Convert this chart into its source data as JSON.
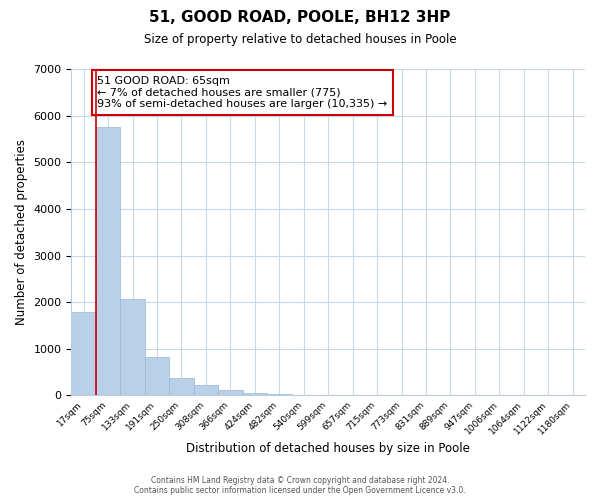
{
  "title": "51, GOOD ROAD, POOLE, BH12 3HP",
  "subtitle": "Size of property relative to detached houses in Poole",
  "xlabel": "Distribution of detached houses by size in Poole",
  "ylabel": "Number of detached properties",
  "bar_values": [
    1780,
    5750,
    2060,
    830,
    370,
    225,
    110,
    50,
    30,
    10,
    5,
    0,
    0,
    0,
    0,
    0,
    0,
    0,
    0,
    0,
    0
  ],
  "bar_labels": [
    "17sqm",
    "75sqm",
    "133sqm",
    "191sqm",
    "250sqm",
    "308sqm",
    "366sqm",
    "424sqm",
    "482sqm",
    "540sqm",
    "599sqm",
    "657sqm",
    "715sqm",
    "773sqm",
    "831sqm",
    "889sqm",
    "947sqm",
    "1006sqm",
    "1064sqm",
    "1122sqm",
    "1180sqm"
  ],
  "bar_color": "#b8d0e8",
  "bar_edge_color": "#9ab8d8",
  "marker_color": "#cc0000",
  "ylim": [
    0,
    7000
  ],
  "yticks": [
    0,
    1000,
    2000,
    3000,
    4000,
    5000,
    6000,
    7000
  ],
  "annotation_title": "51 GOOD ROAD: 65sqm",
  "annotation_line1": "← 7% of detached houses are smaller (775)",
  "annotation_line2": "93% of semi-detached houses are larger (10,335) →",
  "annotation_box_color": "#ffffff",
  "annotation_box_edge_color": "#cc0000",
  "footer1": "Contains HM Land Registry data © Crown copyright and database right 2024.",
  "footer2": "Contains public sector information licensed under the Open Government Licence v3.0.",
  "background_color": "#ffffff",
  "grid_color": "#c8d8e8"
}
